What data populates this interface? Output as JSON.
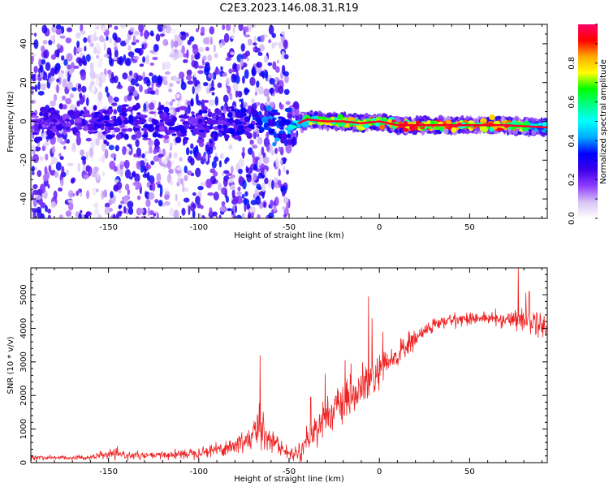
{
  "page": {
    "title": "C2E3.2023.146.08.31.R19"
  },
  "chart_data": [
    {
      "type": "heatmap",
      "xlabel": "Height of straight line (km)",
      "ylabel": "Frequency (Hz)",
      "xlim": [
        -193,
        93
      ],
      "ylim": [
        -50,
        50
      ],
      "xticks": [
        -150,
        -100,
        -50,
        0,
        50
      ],
      "yticks": [
        -40,
        -20,
        0,
        20,
        40
      ],
      "grid": false,
      "colorbar": {
        "label": "Normalized spectral amplitude",
        "ticks": [
          0.0,
          0.2,
          0.4,
          0.6,
          0.8
        ],
        "range": [
          0,
          1
        ],
        "colors": [
          "#ffffff",
          "#d9c4f5",
          "#8f3dff",
          "#3b00e8",
          "#0000ff",
          "#00aaff",
          "#00ffff",
          "#00ff88",
          "#00ff00",
          "#ffff00",
          "#ffaa00",
          "#ff0000",
          "#ff0066"
        ]
      },
      "ridge": {
        "description_points_x": [
          -190,
          -150,
          -100,
          -70,
          -50,
          -40,
          -30,
          -20,
          -10,
          0,
          10,
          30,
          50,
          70,
          90
        ],
        "center_hz": [
          0,
          0,
          -2,
          0,
          -3,
          1,
          0,
          0,
          -1,
          0,
          -2,
          -2,
          -2,
          -2,
          -3
        ],
        "peak_amplitude": [
          0.25,
          0.3,
          0.3,
          0.35,
          0.45,
          0.8,
          0.8,
          0.85,
          0.85,
          0.9,
          0.95,
          0.95,
          0.95,
          0.95,
          0.5
        ]
      }
    },
    {
      "type": "line",
      "xlabel": "Height of straight line (km)",
      "ylabel": "SNR (10 * v/v)",
      "xlim": [
        -193,
        93
      ],
      "ylim": [
        0,
        5800
      ],
      "xticks": [
        -150,
        -100,
        -50,
        0,
        50
      ],
      "yticks": [
        0,
        1000,
        2000,
        3000,
        4000,
        5000
      ],
      "grid": false,
      "line_color": "#ee2222",
      "series_envelope": {
        "x": [
          -193,
          -160,
          -150,
          -130,
          -110,
          -95,
          -80,
          -70,
          -66,
          -60,
          -50,
          -45,
          -38,
          -30,
          -20,
          -10,
          0,
          10,
          20,
          30,
          40,
          50,
          60,
          70,
          80,
          90,
          93
        ],
        "y": [
          150,
          150,
          250,
          200,
          250,
          350,
          500,
          800,
          1100,
          700,
          250,
          300,
          800,
          1400,
          1700,
          2200,
          2700,
          3200,
          3700,
          4100,
          4250,
          4300,
          4300,
          4250,
          4300,
          4100,
          4050
        ],
        "noise": [
          60,
          60,
          120,
          80,
          120,
          150,
          250,
          400,
          600,
          300,
          120,
          200,
          400,
          450,
          500,
          550,
          450,
          350,
          250,
          180,
          150,
          150,
          150,
          180,
          350,
          300,
          250
        ]
      },
      "spikes": [
        {
          "x": -66,
          "y": 3200
        },
        {
          "x": -38,
          "y": 1950
        },
        {
          "x": -30,
          "y": 2650
        },
        {
          "x": -19,
          "y": 3050
        },
        {
          "x": -6,
          "y": 4950
        },
        {
          "x": -4,
          "y": 4300
        },
        {
          "x": 2,
          "y": 3900
        },
        {
          "x": 77,
          "y": 5800
        },
        {
          "x": 83,
          "y": 5100
        }
      ]
    }
  ]
}
